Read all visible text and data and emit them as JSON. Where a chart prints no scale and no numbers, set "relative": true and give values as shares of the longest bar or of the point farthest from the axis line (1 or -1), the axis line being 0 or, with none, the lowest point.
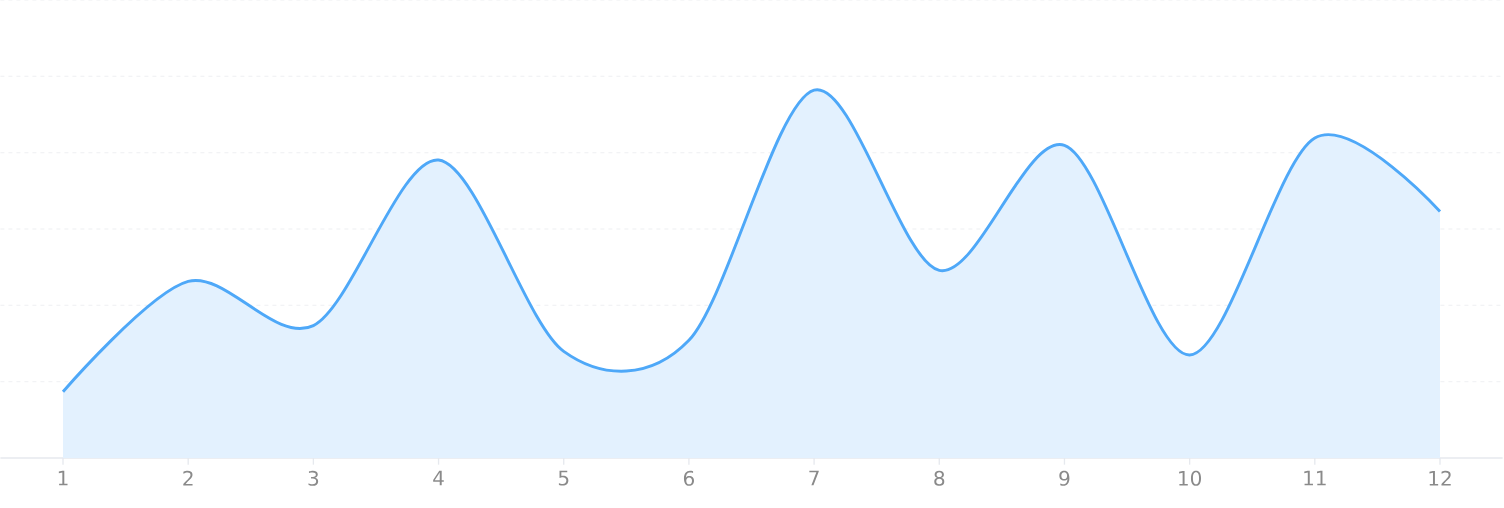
{
  "chart_data": {
    "type": "area",
    "relative": true,
    "categories": [
      "1",
      "2",
      "3",
      "4",
      "5",
      "6",
      "7",
      "8",
      "9",
      "10",
      "11",
      "12"
    ],
    "series": [
      {
        "color": "#4ea8f8",
        "values": [
          0.18,
          0.48,
          0.36,
          0.81,
          0.29,
          0.32,
          1,
          0.51,
          0.85,
          0.28,
          0.87,
          0.67
        ]
      }
    ],
    "grid": "y"
  }
}
